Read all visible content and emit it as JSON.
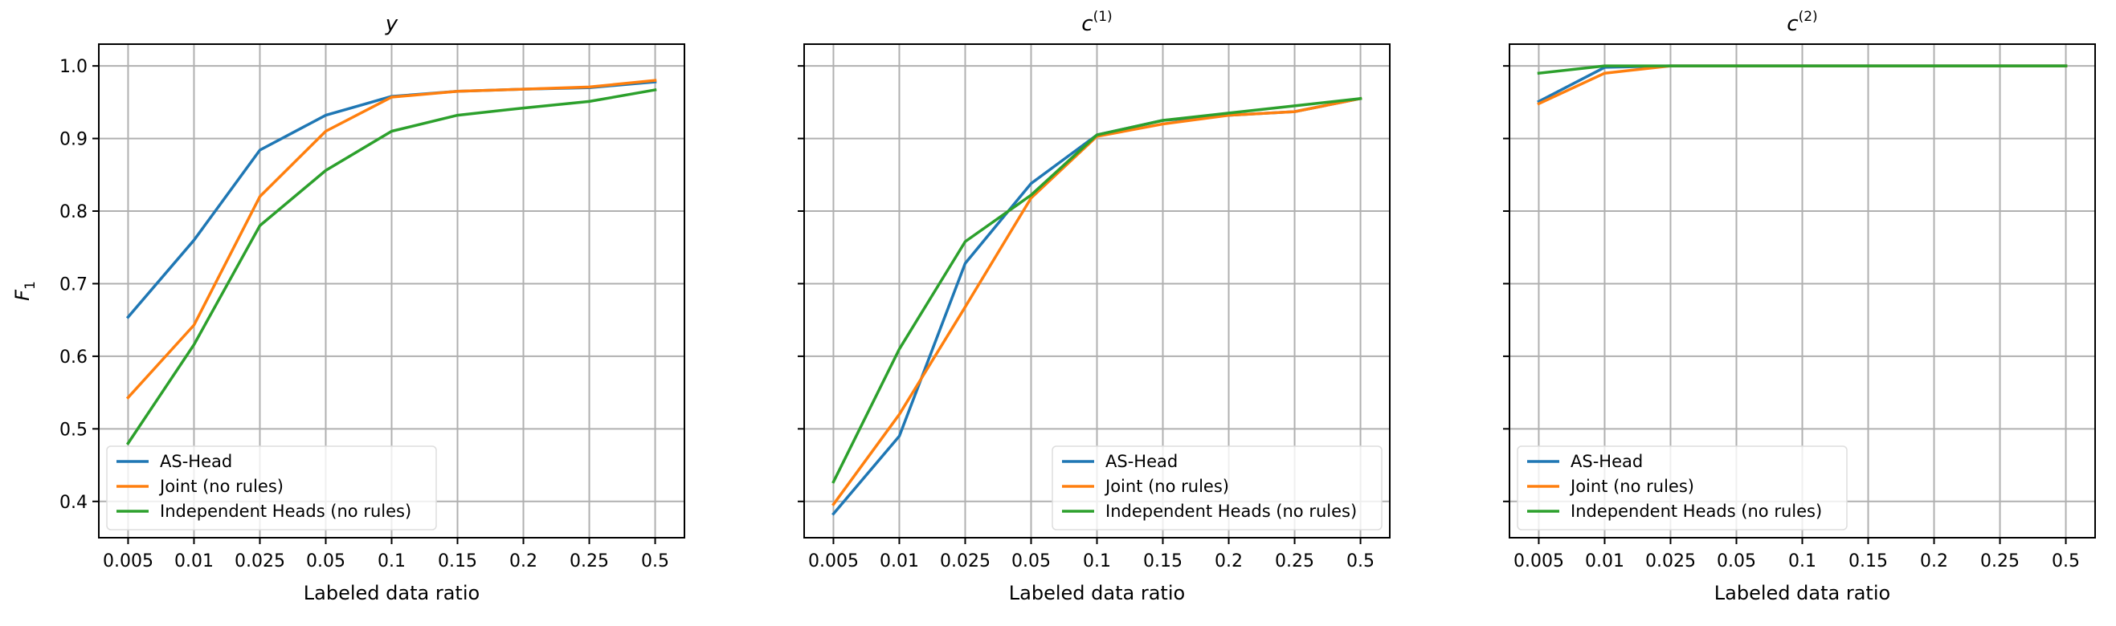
{
  "chart_data": [
    {
      "type": "line",
      "title": "y",
      "title_sup": "",
      "xlabel": "Labeled data ratio",
      "ylabel": "F1",
      "ylabel_main": "F",
      "ylabel_sub": "1",
      "categories": [
        "0.005",
        "0.01",
        "0.025",
        "0.05",
        "0.1",
        "0.15",
        "0.2",
        "0.25",
        "0.5"
      ],
      "ylim": [
        0.35,
        1.03
      ],
      "yticks": [
        "0.4",
        "0.5",
        "0.6",
        "0.7",
        "0.8",
        "0.9",
        "1.0"
      ],
      "grid": true,
      "legend_position": "lower left",
      "series": [
        {
          "name": "AS-Head",
          "color": "#1f77b4",
          "values": [
            0.654,
            0.76,
            0.884,
            0.932,
            0.958,
            0.965,
            0.968,
            0.97,
            0.978
          ]
        },
        {
          "name": "Joint (no rules)",
          "color": "#ff7f0e",
          "values": [
            0.543,
            0.643,
            0.82,
            0.91,
            0.957,
            0.965,
            0.968,
            0.971,
            0.98
          ]
        },
        {
          "name": "Independent Heads (no rules)",
          "color": "#2ca02c",
          "values": [
            0.48,
            0.616,
            0.78,
            0.856,
            0.91,
            0.932,
            0.942,
            0.951,
            0.967
          ]
        }
      ]
    },
    {
      "type": "line",
      "title": "c",
      "title_sup": "(1)",
      "xlabel": "Labeled data ratio",
      "ylabel": "",
      "categories": [
        "0.005",
        "0.01",
        "0.025",
        "0.05",
        "0.1",
        "0.15",
        "0.2",
        "0.25",
        "0.5"
      ],
      "ylim": [
        0.35,
        1.03
      ],
      "yticks": [],
      "grid": true,
      "legend_position": "lower right",
      "series": [
        {
          "name": "AS-Head",
          "color": "#1f77b4",
          "values": [
            0.383,
            0.49,
            0.728,
            0.838,
            0.905,
            0.925,
            0.932,
            0.937,
            0.955
          ]
        },
        {
          "name": "Joint (no rules)",
          "color": "#ff7f0e",
          "values": [
            0.396,
            0.52,
            0.668,
            0.818,
            0.903,
            0.92,
            0.932,
            0.937,
            0.955
          ]
        },
        {
          "name": "Independent Heads (no rules)",
          "color": "#2ca02c",
          "values": [
            0.427,
            0.61,
            0.758,
            0.822,
            0.905,
            0.925,
            0.935,
            0.945,
            0.955
          ]
        }
      ]
    },
    {
      "type": "line",
      "title": "c",
      "title_sup": "(2)",
      "xlabel": "Labeled data ratio",
      "ylabel": "",
      "categories": [
        "0.005",
        "0.01",
        "0.025",
        "0.05",
        "0.1",
        "0.15",
        "0.2",
        "0.25",
        "0.5"
      ],
      "ylim": [
        0.35,
        1.03
      ],
      "yticks": [],
      "grid": true,
      "legend_position": "lower left",
      "series": [
        {
          "name": "AS-Head",
          "color": "#1f77b4",
          "values": [
            0.951,
            0.998,
            1.0,
            1.0,
            1.0,
            1.0,
            1.0,
            1.0,
            1.0
          ]
        },
        {
          "name": "Joint (no rules)",
          "color": "#ff7f0e",
          "values": [
            0.948,
            0.99,
            1.0,
            1.0,
            1.0,
            1.0,
            1.0,
            1.0,
            1.0
          ]
        },
        {
          "name": "Independent Heads (no rules)",
          "color": "#2ca02c",
          "values": [
            0.99,
            1.0,
            1.0,
            1.0,
            1.0,
            1.0,
            1.0,
            1.0,
            1.0
          ]
        }
      ]
    }
  ]
}
